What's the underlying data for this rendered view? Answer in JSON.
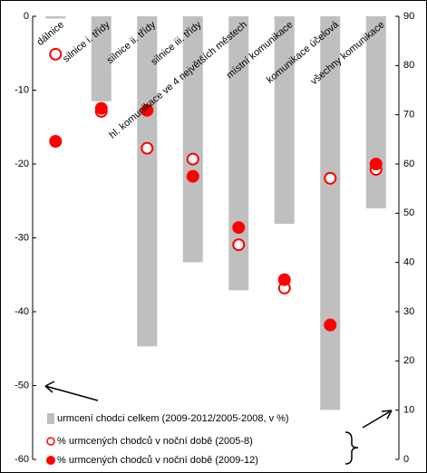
{
  "chart_data": {
    "type": "bar",
    "categories": [
      "dálnice",
      "silnice i. třídy",
      "silnice ii. třídy",
      "silnice iii. třídy",
      "hl. komunikace ve 4 největších městech",
      "místní komunikace",
      "komunikace účelová",
      "všechny komunikace"
    ],
    "series": [
      {
        "name": "urmcení chodci celkem (2009-2012/2005-2008,  v %)",
        "color": "#bfbfbf",
        "type": "bar",
        "values": [
          -0.3,
          -11.5,
          -44.7,
          -33.3,
          -37.1,
          -28.1,
          -53.3,
          -26
        ]
      },
      {
        "name": "% urmcených chodců v noční době (2005-8)",
        "color": "#ff0000",
        "type": "hollow",
        "axis": "y2",
        "values": [
          82.3,
          70.7,
          63.2,
          61,
          43.6,
          34.8,
          57.1,
          58.9
        ]
      },
      {
        "name": "% urmcených chodců v noční době (2009-12)",
        "color": "#ff0000",
        "type": "filled",
        "axis": "y2",
        "values": [
          64.6,
          71.3,
          70.9,
          57.5,
          47.1,
          36.5,
          27.3,
          60
        ]
      }
    ],
    "ylim": [
      -60,
      0
    ],
    "yticks": [
      0,
      -10,
      -20,
      -30,
      -40,
      -50,
      -60
    ],
    "y2lim": [
      0,
      90
    ],
    "y2ticks": [
      0,
      10,
      20,
      30,
      40,
      50,
      60,
      70,
      80,
      90
    ]
  }
}
